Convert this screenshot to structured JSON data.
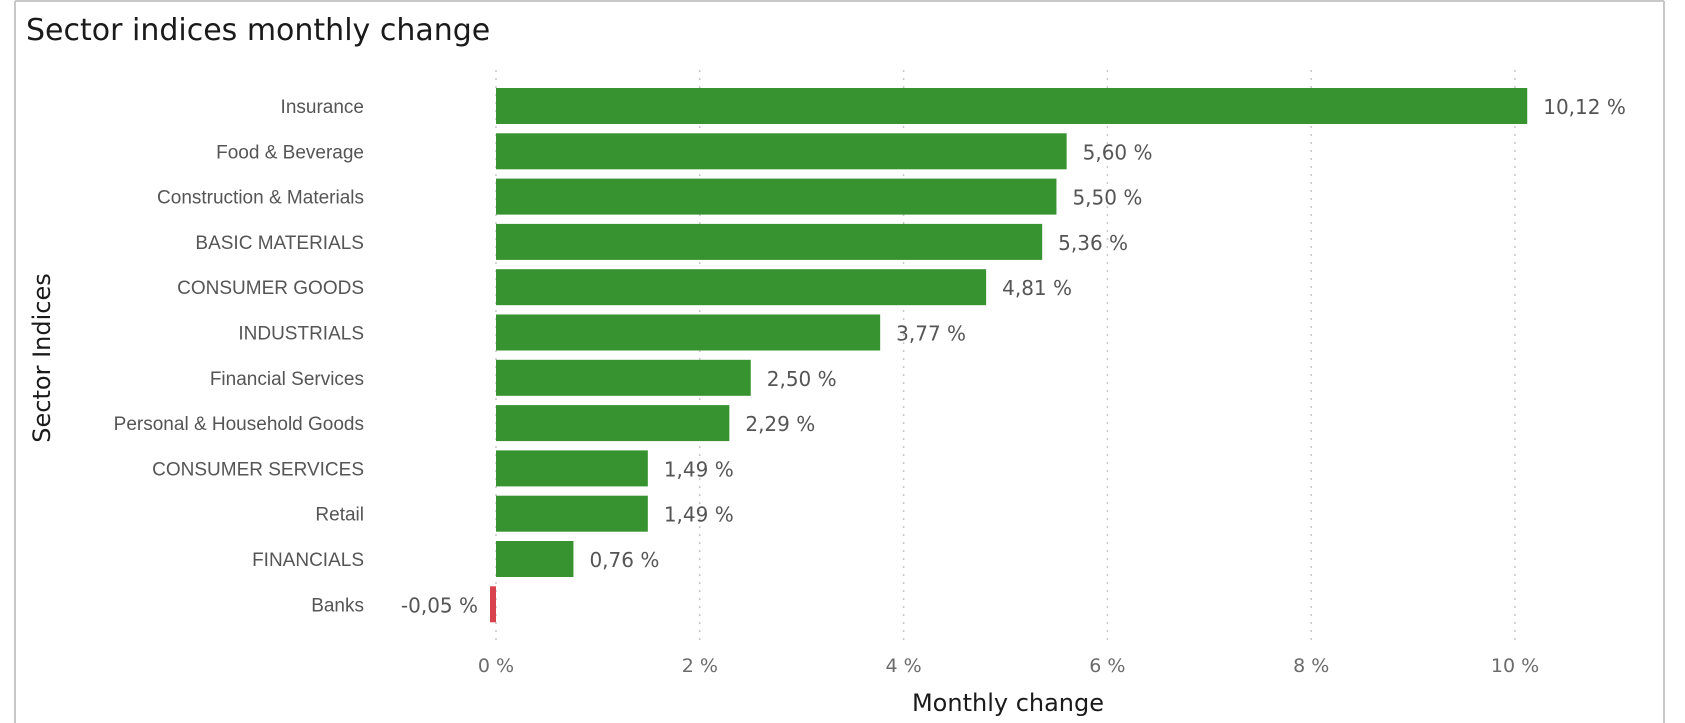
{
  "chart_data": {
    "type": "bar",
    "orientation": "horizontal",
    "title": "Sector indices monthly change",
    "xlabel": "Monthly change",
    "ylabel": "Sector Indices",
    "categories": [
      "Insurance",
      "Food & Beverage",
      "Construction & Materials",
      "BASIC MATERIALS",
      "CONSUMER GOODS",
      "INDUSTRIALS",
      "Financial Services",
      "Personal & Household Goods",
      "CONSUMER SERVICES",
      "Retail",
      "FINANCIALS",
      "Banks"
    ],
    "values": [
      10.12,
      5.6,
      5.5,
      5.36,
      4.81,
      3.77,
      2.5,
      2.29,
      1.49,
      1.49,
      0.76,
      -0.05
    ],
    "value_labels": [
      "10,12 %",
      "5,60 %",
      "5,50 %",
      "5,36 %",
      "4,81 %",
      "3,77 %",
      "2,50 %",
      "2,29 %",
      "1,49 %",
      "1,49 %",
      "0,76 %",
      "-0,05 %"
    ],
    "xticks": [
      0,
      2,
      4,
      6,
      8,
      10
    ],
    "xtick_labels": [
      "0 %",
      "2 %",
      "4 %",
      "6 %",
      "8 %",
      "10 %"
    ],
    "xlim": [
      0,
      10.12
    ],
    "grid": "vertical dotted",
    "colors": {
      "positive": "#36932f",
      "negative": "#d9434e",
      "grid": "#c8c8c8",
      "border": "#c8c8c8"
    }
  }
}
